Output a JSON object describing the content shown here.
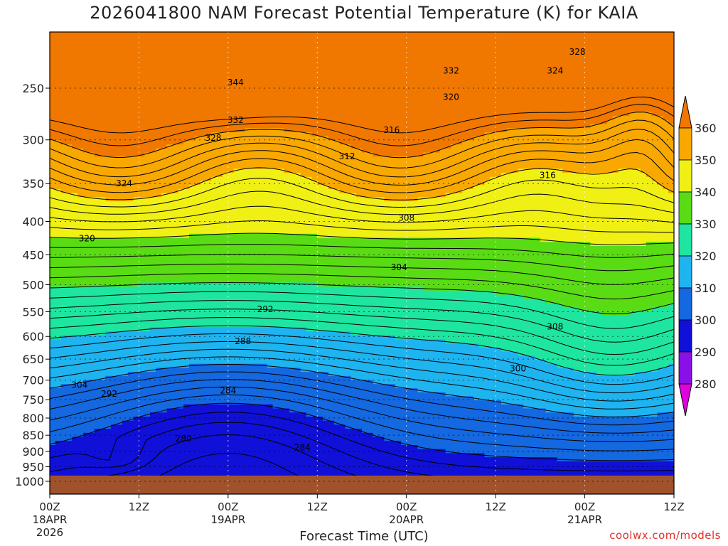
{
  "chart_data": {
    "type": "contour",
    "title": "2026041800 NAM Forecast Potential Temperature (K) for KAIA",
    "xlabel": "Forecast Time (UTC)",
    "ylabel": "",
    "credit": "coolwx.com/models",
    "x_ticks": [
      {
        "label": "00Z",
        "sub1": "18APR",
        "sub2": "2026",
        "hour": 0
      },
      {
        "label": "12Z",
        "sub1": "",
        "sub2": "",
        "hour": 12
      },
      {
        "label": "00Z",
        "sub1": "19APR",
        "sub2": "",
        "hour": 24
      },
      {
        "label": "12Z",
        "sub1": "",
        "sub2": "",
        "hour": 36
      },
      {
        "label": "00Z",
        "sub1": "20APR",
        "sub2": "",
        "hour": 48
      },
      {
        "label": "12Z",
        "sub1": "",
        "sub2": "",
        "hour": 60
      },
      {
        "label": "00Z",
        "sub1": "21APR",
        "sub2": "",
        "hour": 72
      },
      {
        "label": "12Z",
        "sub1": "",
        "sub2": "",
        "hour": 84
      }
    ],
    "x_range_hours": [
      0,
      84
    ],
    "y_ticks": [
      250,
      300,
      350,
      400,
      450,
      500,
      550,
      600,
      650,
      700,
      750,
      800,
      850,
      900,
      950,
      1000
    ],
    "y_range_hPa": [
      200,
      1050
    ],
    "colorbar": {
      "levels": [
        280,
        290,
        300,
        310,
        320,
        330,
        340,
        350,
        360
      ],
      "colors": [
        "#e000e0",
        "#8a10e8",
        "#1010d8",
        "#1468e0",
        "#1eb4f0",
        "#1ee6a0",
        "#5adc14",
        "#f0f014",
        "#f8a800",
        "#f07800"
      ]
    },
    "contour_labels": [
      {
        "text": "344",
        "hour": 25,
        "p": 245
      },
      {
        "text": "332",
        "hour": 25,
        "p": 280
      },
      {
        "text": "328",
        "hour": 22,
        "p": 298
      },
      {
        "text": "332",
        "hour": 54,
        "p": 235
      },
      {
        "text": "328",
        "hour": 71,
        "p": 220
      },
      {
        "text": "324",
        "hour": 68,
        "p": 235
      },
      {
        "text": "320",
        "hour": 54,
        "p": 258
      },
      {
        "text": "316",
        "hour": 46,
        "p": 290
      },
      {
        "text": "312",
        "hour": 40,
        "p": 318
      },
      {
        "text": "316",
        "hour": 67,
        "p": 340
      },
      {
        "text": "324",
        "hour": 10,
        "p": 350
      },
      {
        "text": "320",
        "hour": 5,
        "p": 425
      },
      {
        "text": "308",
        "hour": 48,
        "p": 395
      },
      {
        "text": "304",
        "hour": 47,
        "p": 470
      },
      {
        "text": "292",
        "hour": 29,
        "p": 545
      },
      {
        "text": "308",
        "hour": 68,
        "p": 580
      },
      {
        "text": "288",
        "hour": 26,
        "p": 610
      },
      {
        "text": "300",
        "hour": 63,
        "p": 672
      },
      {
        "text": "304",
        "hour": 4,
        "p": 712
      },
      {
        "text": "292",
        "hour": 8,
        "p": 735
      },
      {
        "text": "284",
        "hour": 24,
        "p": 726
      },
      {
        "text": "280",
        "hour": 18,
        "p": 860
      },
      {
        "text": "284",
        "hour": 34,
        "p": 888
      }
    ]
  }
}
